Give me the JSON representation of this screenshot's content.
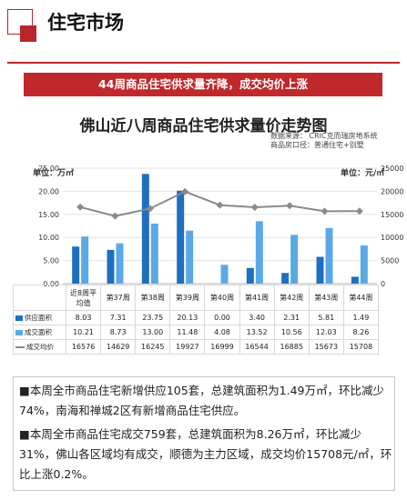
{
  "section": {
    "title": "住宅市场"
  },
  "banner": {
    "text": "44周商品住宅供求量齐降，成交均价上涨"
  },
  "chart_data": {
    "type": "bar",
    "title": "佛山近八周商品住宅供求量价走势图",
    "source_line1": "数据来源：  CRIC克而瑞房地系统",
    "source_line2": "商品房口径：普通住宅+别墅",
    "left_unit": "单位：万㎡",
    "right_unit": "单位：元/㎡",
    "categories": [
      "近8周平均值",
      "第37周",
      "第38周",
      "第39周",
      "第40周",
      "第41周",
      "第42周",
      "第43周",
      "第44周"
    ],
    "category_lines": [
      [
        "近8周平",
        "均值"
      ],
      [
        "第37周"
      ],
      [
        "第38周"
      ],
      [
        "第39周"
      ],
      [
        "第40周"
      ],
      [
        "第41周"
      ],
      [
        "第42周"
      ],
      [
        "第43周"
      ],
      [
        "第44周"
      ]
    ],
    "left_ticks": [
      "0.00",
      "5.00",
      "10.00",
      "15.00",
      "20.00",
      "25.00"
    ],
    "right_ticks": [
      "0",
      "5000",
      "10000",
      "15000",
      "20000",
      "25000"
    ],
    "ylim_left": [
      0,
      25
    ],
    "ylim_right": [
      0,
      25000
    ],
    "series": [
      {
        "name": "供应面积",
        "color": "#1f6fbf",
        "values": [
          8.03,
          7.31,
          23.75,
          20.13,
          0.0,
          3.4,
          2.31,
          5.81,
          1.49
        ],
        "labels": [
          "8.03",
          "7.31",
          "23.75",
          "20.13",
          "0.00",
          "3.40",
          "2.31",
          "5.81",
          "1.49"
        ]
      },
      {
        "name": "成交面积",
        "color": "#5aa9e6",
        "values": [
          10.21,
          8.73,
          13.0,
          11.48,
          4.08,
          13.52,
          10.56,
          12.03,
          8.26
        ],
        "labels": [
          "10.21",
          "8.73",
          "13.00",
          "11.48",
          "4.08",
          "13.52",
          "10.56",
          "12.03",
          "8.26"
        ]
      },
      {
        "name": "成交均价",
        "color": "#8a8a8a",
        "values": [
          16576,
          14629,
          16245,
          19927,
          16999,
          16544,
          16885,
          15673,
          15708
        ],
        "labels": [
          "16576",
          "14629",
          "16245",
          "19927",
          "16999",
          "16544",
          "16885",
          "15673",
          "15708"
        ]
      }
    ]
  },
  "paragraphs": [
    {
      "bullet": "■",
      "text": "本周全市商品住宅新增供应105套，总建筑面积为1.49万㎡，环比减少74%，南海和禅城2区有新增商品住宅供应。"
    },
    {
      "bullet": "■",
      "text": "本周全市商品住宅成交759套，总建筑面积为8.26万㎡，环比减少31%，佛山各区域均有成交，顺德为主力区域，成交均价15708元/㎡，环比上涨0.2%。"
    }
  ]
}
